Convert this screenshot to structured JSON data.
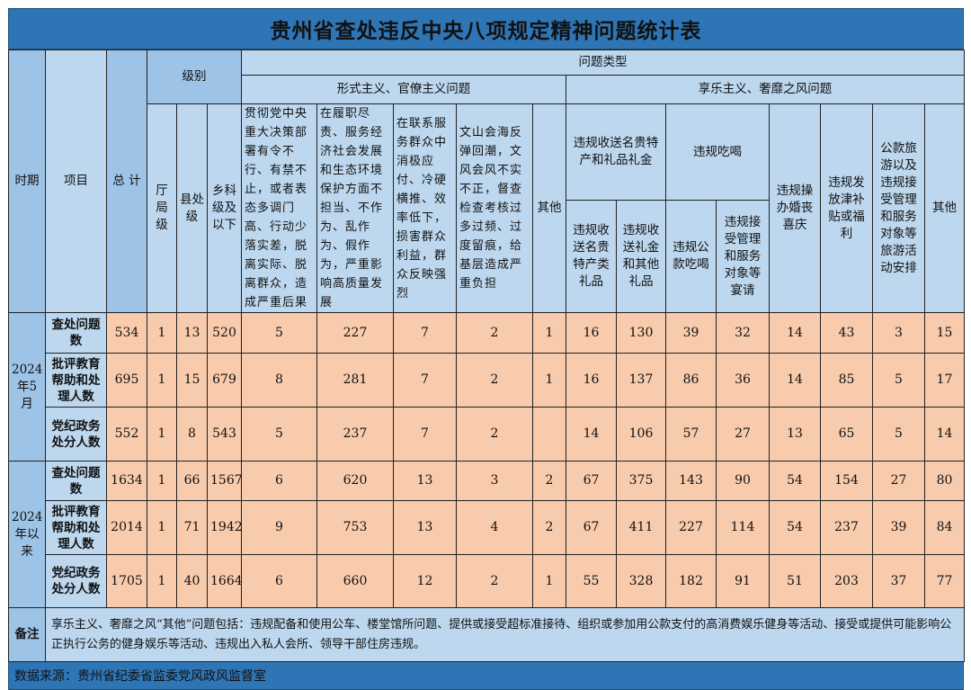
{
  "title": "贵州省查处违反中央八项规定精神问题统计表",
  "header": {
    "period": "时期",
    "item": "项目",
    "total": "总 计",
    "level": "级别",
    "levels": [
      "厅局级",
      "县处级",
      "乡科级及以下"
    ],
    "problem_type": "问题类型",
    "formalism_group": "形式主义、官僚主义问题",
    "formalism_cols": [
      "贯彻党中央重大决策部署有令不行、有禁不止，或者表态多调门高、行动少落实差，脱离实际、脱离群众，造成严重后果",
      "在履职尽责、服务经济社会发展和生态环境保护方面不担当、不作为、乱作为、假作为，严重影响高质量发展",
      "在联系服务群众中消极应付、冷硬横推、效率低下，损害群众利益，群众反映强烈",
      "文山会海反弹回潮，文风会风不实不正，督查检查考核过多过频、过度留痕，给基层造成严重负担",
      "其他"
    ],
    "hedonism_group": "享乐主义、奢靡之风问题",
    "gift_group": "违规收送名贵特产和礼品礼金",
    "gift_cols": [
      "违规收送名贵特产类礼品",
      "违规收送礼金和其他礼品"
    ],
    "dining_group": "违规吃喝",
    "dining_cols": [
      "违规公款吃喝",
      "违规接受管理和服务对象等宴请"
    ],
    "hedonism_other_cols": [
      "违规操办婚丧喜庆",
      "违规发放津补贴或福利",
      "公款旅游以及违规接受管理和服务对象等旅游活动安排",
      "其他"
    ]
  },
  "periods": [
    {
      "label": "2024年5月",
      "rows": [
        {
          "item": "查处问题数",
          "values": [
            "534",
            "1",
            "13",
            "520",
            "5",
            "227",
            "7",
            "2",
            "1",
            "16",
            "130",
            "39",
            "32",
            "14",
            "43",
            "3",
            "15"
          ]
        },
        {
          "item": "批评教育帮助和处理人数",
          "values": [
            "695",
            "1",
            "15",
            "679",
            "8",
            "281",
            "7",
            "2",
            "1",
            "16",
            "137",
            "86",
            "36",
            "14",
            "85",
            "5",
            "17"
          ]
        },
        {
          "item": "党纪政务处分人数",
          "values": [
            "552",
            "1",
            "8",
            "543",
            "5",
            "237",
            "7",
            "2",
            "",
            "14",
            "106",
            "57",
            "27",
            "13",
            "65",
            "5",
            "14"
          ]
        }
      ]
    },
    {
      "label": "2024年以来",
      "rows": [
        {
          "item": "查处问题数",
          "values": [
            "1634",
            "1",
            "66",
            "1567",
            "6",
            "620",
            "13",
            "3",
            "2",
            "67",
            "375",
            "143",
            "90",
            "54",
            "154",
            "27",
            "80"
          ]
        },
        {
          "item": "批评教育帮助和处理人数",
          "values": [
            "2014",
            "1",
            "71",
            "1942",
            "9",
            "753",
            "13",
            "4",
            "2",
            "67",
            "411",
            "227",
            "114",
            "54",
            "237",
            "39",
            "84"
          ]
        },
        {
          "item": "党纪政务处分人数",
          "values": [
            "1705",
            "1",
            "40",
            "1664",
            "6",
            "660",
            "12",
            "2",
            "1",
            "55",
            "328",
            "182",
            "91",
            "51",
            "203",
            "37",
            "77"
          ]
        }
      ]
    }
  ],
  "note": {
    "label": "备注",
    "text": "享乐主义、奢靡之风“其他”问题包括：违规配备和使用公车、楼堂馆所问题、提供或接受超标准接待、组织或参加用公款支付的高消费娱乐健身等活动、接受或提供可能影响公正执行公务的健身娱乐等活动、违规出入私人会所、领导干部住房违规。"
  },
  "source": "数据来源：贵州省纪委省监委党风政风监督室",
  "colors": {
    "title_bar": "#2e75b6",
    "header": "#bdd7ee",
    "period": "#9dc3e6",
    "data": "#f8cbad"
  }
}
